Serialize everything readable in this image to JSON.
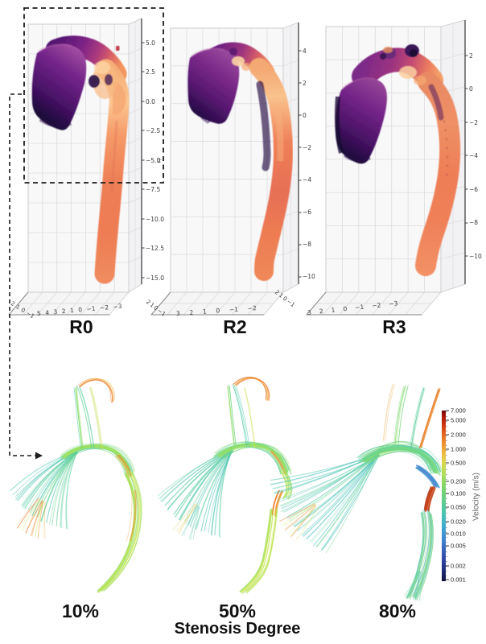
{
  "top_row": {
    "panels": [
      {
        "label": "R0",
        "z_ticks": [
          "5.0",
          "2.5",
          "0.0",
          "−2.5",
          "−5.0",
          "−7.5",
          "−10.0",
          "−12.5",
          "−15.0"
        ],
        "x_ticks": [
          "5",
          "4",
          "3",
          "2",
          "1",
          "0",
          "−1",
          "−2",
          "−3"
        ],
        "y_ticks": [
          "2",
          "1",
          "0",
          "−1"
        ],
        "z_axis_label": "z"
      },
      {
        "label": "R2",
        "z_ticks": [
          "4",
          "2",
          "0",
          "−2",
          "−4",
          "−6",
          "−8",
          "−10"
        ],
        "x_ticks": [
          "3",
          "2",
          "1",
          "0",
          "−1",
          "−2"
        ],
        "y_ticks": [
          "2",
          "1",
          "0",
          "−1"
        ]
      },
      {
        "label": "R3",
        "z_ticks": [
          "2",
          "0",
          "−2",
          "−4",
          "−6",
          "−8",
          "−10"
        ],
        "x_ticks": [
          "3",
          "2",
          "1",
          "0",
          "−1",
          "−2",
          "−3"
        ],
        "y_ticks": [
          "2",
          "1",
          "0",
          "−1"
        ]
      }
    ]
  },
  "bottom_row": {
    "panels": [
      {
        "label": "10%"
      },
      {
        "label": "50%"
      },
      {
        "label": "80%"
      }
    ],
    "axis_label": "Stenosis Degree",
    "colorbar": {
      "title": "Velocity (m/s)",
      "scale": "log",
      "ticks": [
        {
          "label": "7.000",
          "t": 0
        },
        {
          "label": "5.000",
          "t": 12
        },
        {
          "label": "2.000",
          "t": 30
        },
        {
          "label": "1.000",
          "t": 48
        },
        {
          "label": "0.500",
          "t": 65
        },
        {
          "label": "0.200",
          "t": 88
        },
        {
          "label": "0.100",
          "t": 103
        },
        {
          "label": "0.050",
          "t": 120
        },
        {
          "label": "0.020",
          "t": 138
        },
        {
          "label": "0.010",
          "t": 153
        },
        {
          "label": "0.005",
          "t": 168
        },
        {
          "label": "0.002",
          "t": 193
        },
        {
          "label": "0.001",
          "t": 210
        }
      ]
    }
  },
  "colors": {
    "annotation": "#1c1c1c",
    "tick_text": "#3a3a3a",
    "label_text": "#111111",
    "colorbar_top": "#650909",
    "colorbar_bottom": "#10123a"
  }
}
